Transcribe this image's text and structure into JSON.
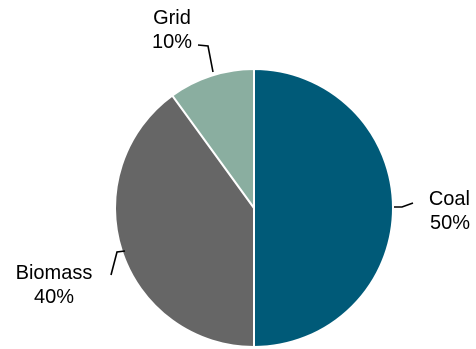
{
  "chart_data": {
    "type": "pie",
    "title": "",
    "legend": "none",
    "slices": [
      {
        "label": "Coal",
        "value": 50,
        "value_label": "50%",
        "color": "#005a78"
      },
      {
        "label": "Biomass",
        "value": 40,
        "value_label": "40%",
        "color": "#666666"
      },
      {
        "label": "Grid",
        "value": 10,
        "value_label": "10%",
        "color": "#8aaea0"
      }
    ]
  }
}
